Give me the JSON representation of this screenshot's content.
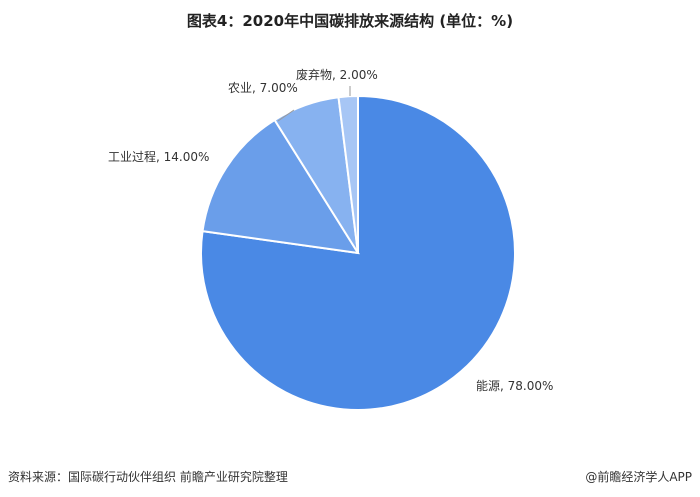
{
  "chart_data": {
    "type": "pie",
    "title": "图表4：2020年中国碳排放来源结构 (单位：%)",
    "categories": [
      "能源",
      "工业过程",
      "农业",
      "废弃物"
    ],
    "values": [
      78.0,
      14.0,
      7.0,
      2.0
    ],
    "labels": [
      "能源, 78.00%",
      "工业过程, 14.00%",
      "农业, 7.00%",
      "废弃物, 2.00%"
    ],
    "colors": [
      "#4a89e5",
      "#6a9eea",
      "#87b2f0",
      "#a7c6f5"
    ],
    "legend": "none"
  },
  "footer": {
    "source": "资料来源：国际碳行动伙伴组织  前瞻产业研究院整理",
    "brand": "@前瞻经济学人APP"
  }
}
